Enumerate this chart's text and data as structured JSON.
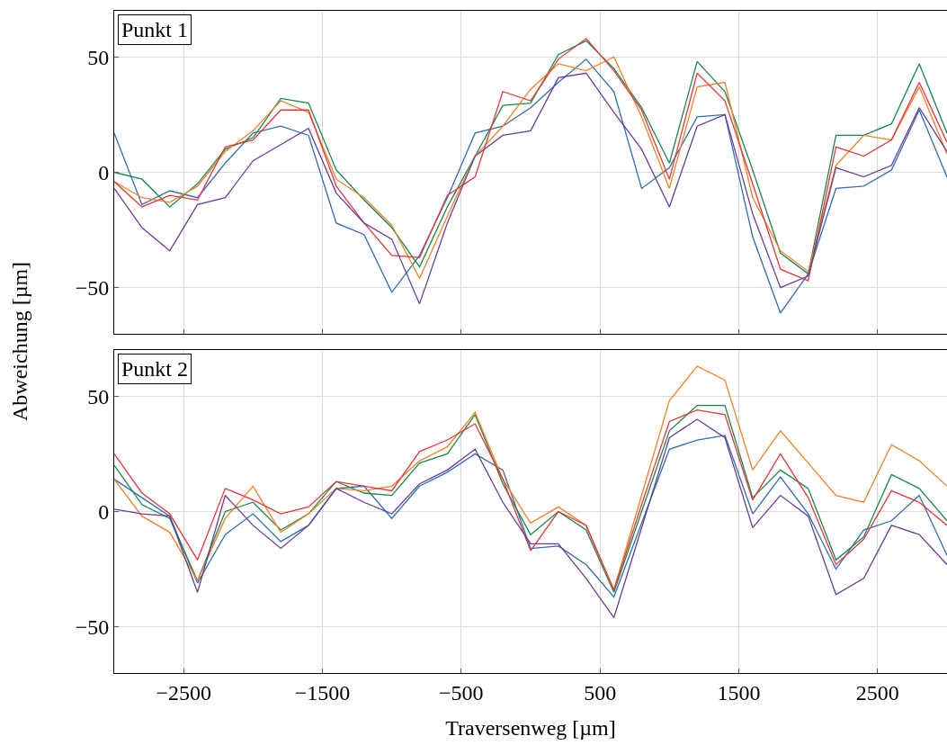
{
  "chart_data": [
    {
      "type": "line",
      "annotations": [
        "Punkt 1"
      ],
      "ylabel": "Abweichung [µm]",
      "grid": true,
      "marker": "none",
      "line_style": "solid",
      "tick_labels": "y",
      "x": [
        -3000,
        -2800,
        -2600,
        -2400,
        -2200,
        -2000,
        -1800,
        -1600,
        -1400,
        -1200,
        -1000,
        -800,
        -600,
        -400,
        -200,
        0,
        200,
        400,
        600,
        800,
        1000,
        1200,
        1400,
        1600,
        1800,
        2000,
        2200,
        2400,
        2600,
        2800,
        3000
      ],
      "xlim": [
        -3000,
        3000
      ],
      "xticks": [
        {
          "value": -2500,
          "label": null
        },
        {
          "value": -1500,
          "label": null
        },
        {
          "value": -500,
          "label": null
        },
        {
          "value": 500,
          "label": null
        },
        {
          "value": 1500,
          "label": null
        },
        {
          "value": 2500,
          "label": null
        }
      ],
      "ylim": [
        -70,
        70
      ],
      "yticks": [
        {
          "value": -50,
          "label": "−50"
        },
        0,
        50
      ],
      "series": [
        {
          "color": "#2e6db4",
          "values": [
            17,
            -14,
            -8,
            -11,
            4,
            17,
            20,
            16,
            -22,
            -27,
            -52,
            -36,
            -11,
            17,
            20,
            28,
            39,
            49,
            35,
            -7,
            2,
            24,
            25,
            -28,
            -61,
            -44,
            -7,
            -6,
            1,
            27,
            -2
          ]
        },
        {
          "color": "#14894a",
          "values": [
            0,
            -3,
            -15,
            -5,
            10,
            15,
            32,
            30,
            1,
            -12,
            -24,
            -41,
            -15,
            7,
            29,
            30,
            51,
            57,
            45,
            28,
            4,
            48,
            35,
            1,
            -35,
            -44,
            16,
            16,
            21,
            47,
            17
          ]
        },
        {
          "color": "#f58025",
          "values": [
            -4,
            -11,
            -13,
            -6,
            9,
            18,
            31,
            26,
            -3,
            -11,
            -23,
            -46,
            -19,
            7,
            20,
            36,
            47,
            44,
            50,
            24,
            -7,
            37,
            39,
            -11,
            -34,
            -43,
            3,
            16,
            14,
            37,
            8
          ]
        },
        {
          "color": "#e8363c",
          "values": [
            -4,
            -15,
            -10,
            -12,
            11,
            14,
            27,
            27,
            -6,
            -22,
            -36,
            -37,
            -10,
            -2,
            35,
            31,
            49,
            58,
            44,
            27,
            -3,
            43,
            31,
            -5,
            -42,
            -47,
            11,
            7,
            14,
            39,
            13
          ]
        },
        {
          "color": "#6a3d9a",
          "values": [
            -7,
            -24,
            -34,
            -14,
            -11,
            5,
            12,
            19,
            -9,
            -22,
            -29,
            -57,
            -22,
            7,
            16,
            18,
            41,
            43,
            26,
            10,
            -15,
            20,
            25,
            -18,
            -50,
            -45,
            2,
            -2,
            3,
            28,
            9
          ]
        }
      ]
    },
    {
      "type": "line",
      "annotations": [
        "Punkt 2"
      ],
      "xlabel": "Traversenweg [µm]",
      "grid": true,
      "marker": "none",
      "line_style": "solid",
      "x": [
        -3000,
        -2800,
        -2600,
        -2400,
        -2200,
        -2000,
        -1800,
        -1600,
        -1400,
        -1200,
        -1000,
        -800,
        -600,
        -400,
        -200,
        0,
        200,
        400,
        600,
        800,
        1000,
        1200,
        1400,
        1600,
        1800,
        2000,
        2200,
        2400,
        2600,
        2800,
        3000
      ],
      "xlim": [
        -3000,
        3000
      ],
      "xticks": [
        {
          "value": -2500,
          "label": "−2500"
        },
        {
          "value": -1500,
          "label": "−1500"
        },
        {
          "value": -500,
          "label": "−500"
        },
        500,
        1500,
        2500
      ],
      "ylim": [
        -70,
        70
      ],
      "yticks": [
        {
          "value": -50,
          "label": "−50"
        },
        0,
        50
      ],
      "series": [
        {
          "color": "#2e6db4",
          "values": [
            14,
            6,
            -2,
            -31,
            -10,
            -1,
            -13,
            -6,
            10,
            11,
            -3,
            11,
            17,
            25,
            18,
            -16,
            -15,
            -23,
            -37,
            -5,
            27,
            31,
            33,
            -1,
            15,
            -1,
            -25,
            -8,
            -4,
            7,
            -19
          ]
        },
        {
          "color": "#14894a",
          "values": [
            20,
            3,
            -3,
            -30,
            0,
            4,
            -8,
            -1,
            13,
            8,
            7,
            21,
            25,
            42,
            12,
            -10,
            0,
            -8,
            -35,
            0,
            35,
            46,
            46,
            6,
            18,
            10,
            -21,
            -11,
            16,
            10,
            -4
          ]
        },
        {
          "color": "#f58025",
          "values": [
            14,
            -2,
            -9,
            -30,
            -3,
            11,
            -9,
            -1,
            10,
            9,
            11,
            22,
            28,
            43,
            14,
            -5,
            2,
            -6,
            -34,
            7,
            48,
            63,
            57,
            18,
            35,
            21,
            7,
            4,
            29,
            22,
            11
          ]
        },
        {
          "color": "#e8363c",
          "values": [
            25,
            8,
            -1,
            -21,
            10,
            5,
            -1,
            2,
            13,
            11,
            9,
            26,
            31,
            38,
            14,
            -17,
            0,
            -6,
            -34,
            3,
            39,
            44,
            42,
            5,
            25,
            6,
            -23,
            -12,
            9,
            4,
            -6
          ]
        },
        {
          "color": "#6a3d9a",
          "values": [
            1,
            -1,
            -2,
            -35,
            7,
            -6,
            -16,
            -6,
            10,
            4,
            -1,
            12,
            18,
            27,
            4,
            -14,
            -14,
            -29,
            -46,
            -7,
            32,
            40,
            32,
            -7,
            7,
            -2,
            -36,
            -29,
            -6,
            -10,
            -23
          ]
        }
      ]
    }
  ]
}
